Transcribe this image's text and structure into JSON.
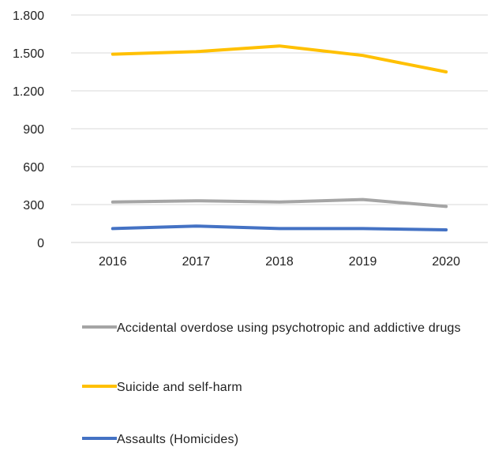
{
  "chart_data": {
    "type": "line",
    "categories": [
      "2016",
      "2017",
      "2018",
      "2019",
      "2020"
    ],
    "ylim": [
      0,
      1800
    ],
    "yticks": [
      0,
      300,
      600,
      900,
      1200,
      1500,
      1800
    ],
    "ytick_labels": [
      "0",
      "300",
      "600",
      "900",
      "1.200",
      "1.500",
      "1.800"
    ],
    "grid": true,
    "legend_position": "bottom",
    "series": [
      {
        "name": "Accidental overdose using psychotropic and addictive drugs",
        "color": "#a5a5a5",
        "values": [
          320,
          330,
          320,
          340,
          285
        ]
      },
      {
        "name": "Suicide and self-harm",
        "color": "#ffc000",
        "values": [
          1490,
          1510,
          1555,
          1480,
          1350
        ]
      },
      {
        "name": "Assaults (Homicides)",
        "color": "#4472c4",
        "values": [
          110,
          130,
          110,
          110,
          100
        ]
      }
    ]
  }
}
